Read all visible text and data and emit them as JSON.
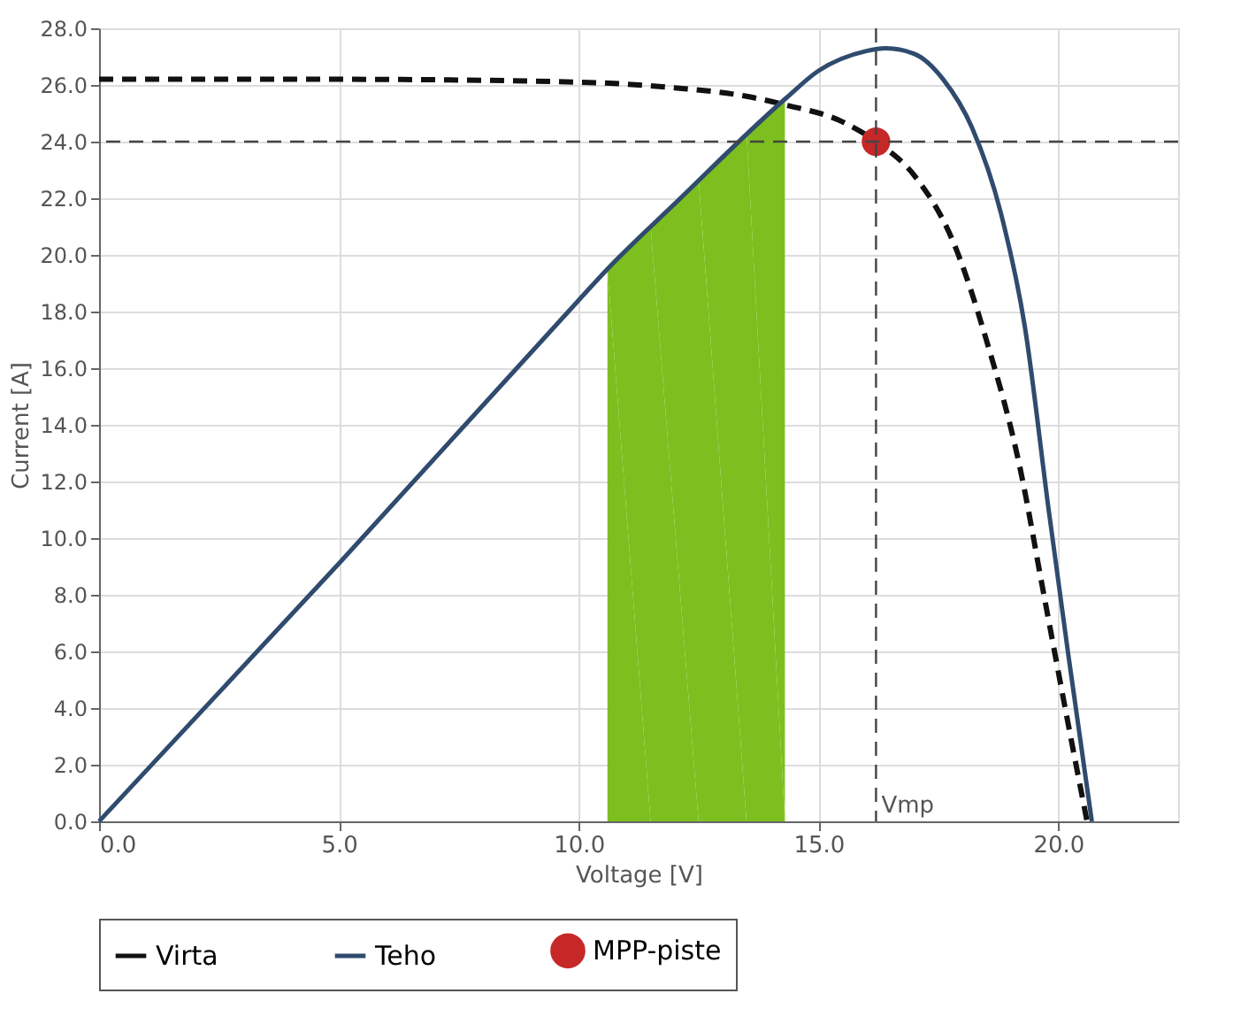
{
  "chart_data": {
    "type": "line",
    "xlabel": "Voltage [V]",
    "ylabel": "Current [A]",
    "xlim": [
      0,
      22.5
    ],
    "ylim": [
      0,
      28
    ],
    "xticks": [
      {
        "value": 0,
        "label": "0.0"
      },
      {
        "value": 5,
        "label": "5.0"
      },
      {
        "value": 10,
        "label": "10.0"
      },
      {
        "value": 15,
        "label": "15.0"
      },
      {
        "value": 20,
        "label": "20.0"
      }
    ],
    "yticks": [
      {
        "value": 0,
        "label": "0.0"
      },
      {
        "value": 2,
        "label": "2.0"
      },
      {
        "value": 4,
        "label": "4.0"
      },
      {
        "value": 6,
        "label": "6.0"
      },
      {
        "value": 8,
        "label": "8.0"
      },
      {
        "value": 10,
        "label": "10.0"
      },
      {
        "value": 12,
        "label": "12.0"
      },
      {
        "value": 14,
        "label": "14.0"
      },
      {
        "value": 16,
        "label": "16.0"
      },
      {
        "value": 18,
        "label": "18.0"
      },
      {
        "value": 20,
        "label": "20.0"
      },
      {
        "value": 22,
        "label": "22.0"
      },
      {
        "value": 24,
        "label": "24.0"
      },
      {
        "value": 26,
        "label": "26.0"
      },
      {
        "value": 28,
        "label": "28.0"
      }
    ],
    "grid": true,
    "legend": "bottom",
    "series": [
      {
        "type": "area",
        "color": "#7dbf1f",
        "x": [
          10.6,
          11.5,
          12.5,
          13.5,
          14.3
        ],
        "values": [
          19.5,
          21.0,
          22.7,
          24.3,
          25.5
        ]
      },
      {
        "name": "Virta",
        "type": "line",
        "line_style": "dashed",
        "color": "#111111",
        "x": [
          0,
          5,
          10,
          12,
          13.5,
          14.3,
          15.5,
          16.2,
          17,
          17.8,
          18.5,
          19.2,
          19.7,
          20.2,
          20.6
        ],
        "values": [
          26.2,
          26.2,
          26.1,
          25.9,
          25.6,
          25.3,
          24.7,
          24,
          22.8,
          20.5,
          17,
          12.5,
          8,
          3.5,
          0
        ]
      },
      {
        "name": "Teho",
        "type": "line",
        "line_style": "solid",
        "color": "#2f4b6e",
        "x": [
          0,
          5,
          10,
          10.6,
          12,
          14.3,
          15,
          16,
          16.4,
          17,
          17.6,
          18.2,
          18.8,
          19.3,
          19.8,
          20.2,
          20.7
        ],
        "values": [
          0,
          9.1,
          18.4,
          19.5,
          21.8,
          25.5,
          26.5,
          27.2,
          27.3,
          27.1,
          26.2,
          24.5,
          21.5,
          17.5,
          11,
          6,
          0
        ]
      },
      {
        "name": "MPP-piste",
        "type": "scatter",
        "marker": "circle",
        "color": "#c62828",
        "x": [
          16.2
        ],
        "values": [
          24
        ]
      }
    ],
    "ref_lines": [
      {
        "axis": "x",
        "value": 16.2,
        "label": "Vmp",
        "line_style": "dashed",
        "color": "#444444"
      },
      {
        "axis": "y",
        "value": 24,
        "line_style": "dashed",
        "color": "#444444"
      }
    ]
  }
}
